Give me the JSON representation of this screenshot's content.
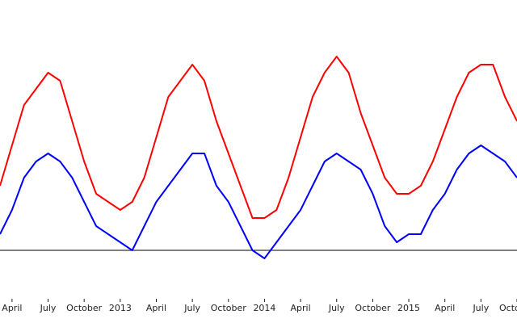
{
  "chart_data": {
    "type": "line",
    "x": [
      "2012-03",
      "2012-04",
      "2012-05",
      "2012-06",
      "2012-07",
      "2012-08",
      "2012-09",
      "2012-10",
      "2012-11",
      "2012-12",
      "2013-01",
      "2013-02",
      "2013-03",
      "2013-04",
      "2013-05",
      "2013-06",
      "2013-07",
      "2013-08",
      "2013-09",
      "2013-10",
      "2013-11",
      "2013-12",
      "2014-01",
      "2014-02",
      "2014-03",
      "2014-04",
      "2014-05",
      "2014-06",
      "2014-07",
      "2014-08",
      "2014-09",
      "2014-10",
      "2014-11",
      "2014-12",
      "2015-01",
      "2015-02",
      "2015-03",
      "2015-04",
      "2015-05",
      "2015-06",
      "2015-07",
      "2015-08",
      "2015-09",
      "2015-10"
    ],
    "series": [
      {
        "color": "#ff0000",
        "values": [
          8,
          13,
          18,
          20,
          22,
          21,
          16,
          11,
          7,
          6,
          5,
          6,
          9,
          14,
          19,
          21,
          23,
          21,
          16,
          12,
          8,
          4,
          4,
          5,
          9,
          14,
          19,
          22,
          24,
          22,
          17,
          13,
          9,
          7,
          7,
          8,
          11,
          15,
          19,
          22,
          23,
          23,
          19,
          16
        ]
      },
      {
        "color": "#0000ff",
        "values": [
          2,
          5,
          9,
          11,
          12,
          11,
          9,
          6,
          3,
          2,
          1,
          0,
          3,
          6,
          8,
          10,
          12,
          12,
          8,
          6,
          3,
          0,
          -1,
          1,
          3,
          5,
          8,
          11,
          12,
          11,
          10,
          7,
          3,
          1,
          2,
          2,
          5,
          7,
          10,
          12,
          13,
          12,
          11,
          9
        ]
      }
    ],
    "xlim": [
      "2012-03",
      "2015-10"
    ],
    "xticks": [
      {
        "value": "2012-04",
        "label": "April"
      },
      {
        "value": "2012-07",
        "label": "July"
      },
      {
        "value": "2012-10",
        "label": "October"
      },
      {
        "value": "2013-01",
        "label": "2013"
      },
      {
        "value": "2013-04",
        "label": "April"
      },
      {
        "value": "2013-07",
        "label": "July"
      },
      {
        "value": "2013-10",
        "label": "October"
      },
      {
        "value": "2014-01",
        "label": "2014"
      },
      {
        "value": "2014-04",
        "label": "April"
      },
      {
        "value": "2014-07",
        "label": "July"
      },
      {
        "value": "2014-10",
        "label": "October"
      },
      {
        "value": "2015-01",
        "label": "2015"
      },
      {
        "value": "2015-04",
        "label": "April"
      },
      {
        "value": "2015-07",
        "label": "July"
      },
      {
        "value": "2015-10",
        "label": "October"
      }
    ],
    "ylim": [
      -6,
      31
    ],
    "baseline": 0,
    "baseline_color": "#000000"
  }
}
